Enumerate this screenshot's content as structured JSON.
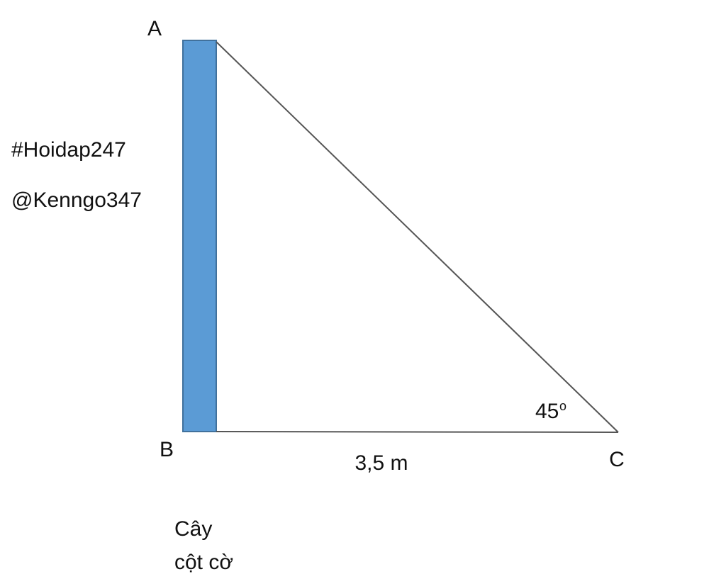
{
  "vertices": [
    {
      "label": "A"
    },
    {
      "label": "B"
    },
    {
      "label": "C"
    }
  ],
  "watermark": [
    "#Hoidap247",
    "@Kenngo347"
  ],
  "side_label": "3,5 m",
  "angle": {
    "value": "45",
    "unit": "o"
  },
  "pole_label": [
    "Cây",
    "cột cờ"
  ]
}
